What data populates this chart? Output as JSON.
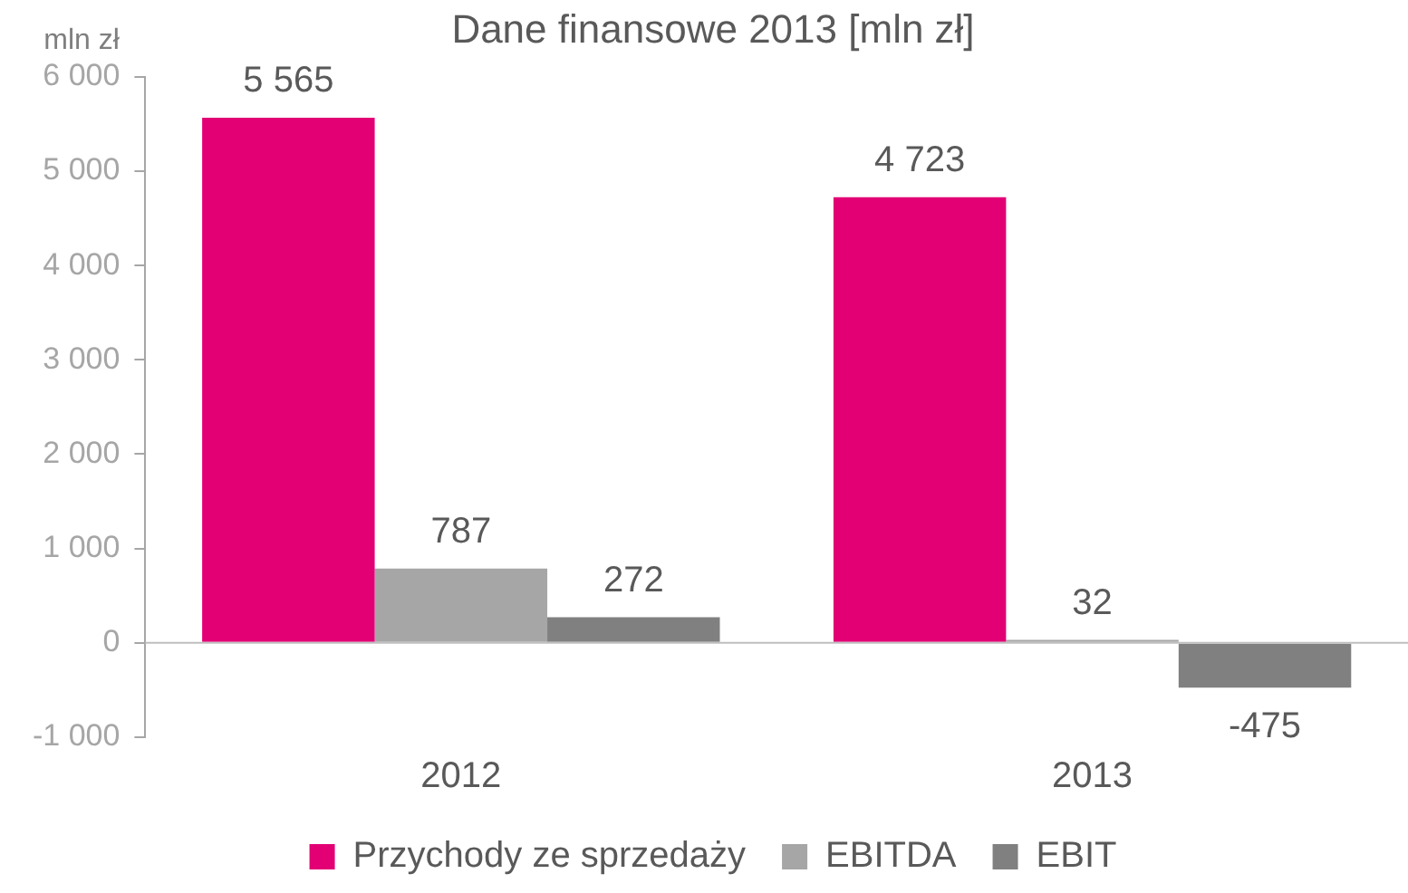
{
  "chart_data": {
    "type": "bar",
    "title": "Dane finansowe 2013 [mln zł]",
    "ylabel": "mln zł",
    "categories": [
      "2012",
      "2013"
    ],
    "series": [
      {
        "name": "Przychody ze sprzedaży",
        "color": "#e20074",
        "values": [
          5565,
          4723
        ],
        "value_labels": [
          "5 565",
          "4 723"
        ]
      },
      {
        "name": "EBITDA",
        "color": "#a6a6a6",
        "values": [
          787,
          32
        ],
        "value_labels": [
          "787",
          "32"
        ]
      },
      {
        "name": "EBIT",
        "color": "#808080",
        "values": [
          272,
          -475
        ],
        "value_labels": [
          "272",
          "-475"
        ]
      }
    ],
    "ylim": [
      -1000,
      6000
    ],
    "yticks": [
      {
        "value": -1000,
        "label": "-1 000"
      },
      0,
      {
        "value": 1000,
        "label": "1 000"
      },
      {
        "value": 2000,
        "label": "2 000"
      },
      {
        "value": 3000,
        "label": "3 000"
      },
      {
        "value": 4000,
        "label": "4 000"
      },
      {
        "value": 5000,
        "label": "5 000"
      },
      {
        "value": 6000,
        "label": "6 000"
      }
    ],
    "legend": "bottom"
  }
}
